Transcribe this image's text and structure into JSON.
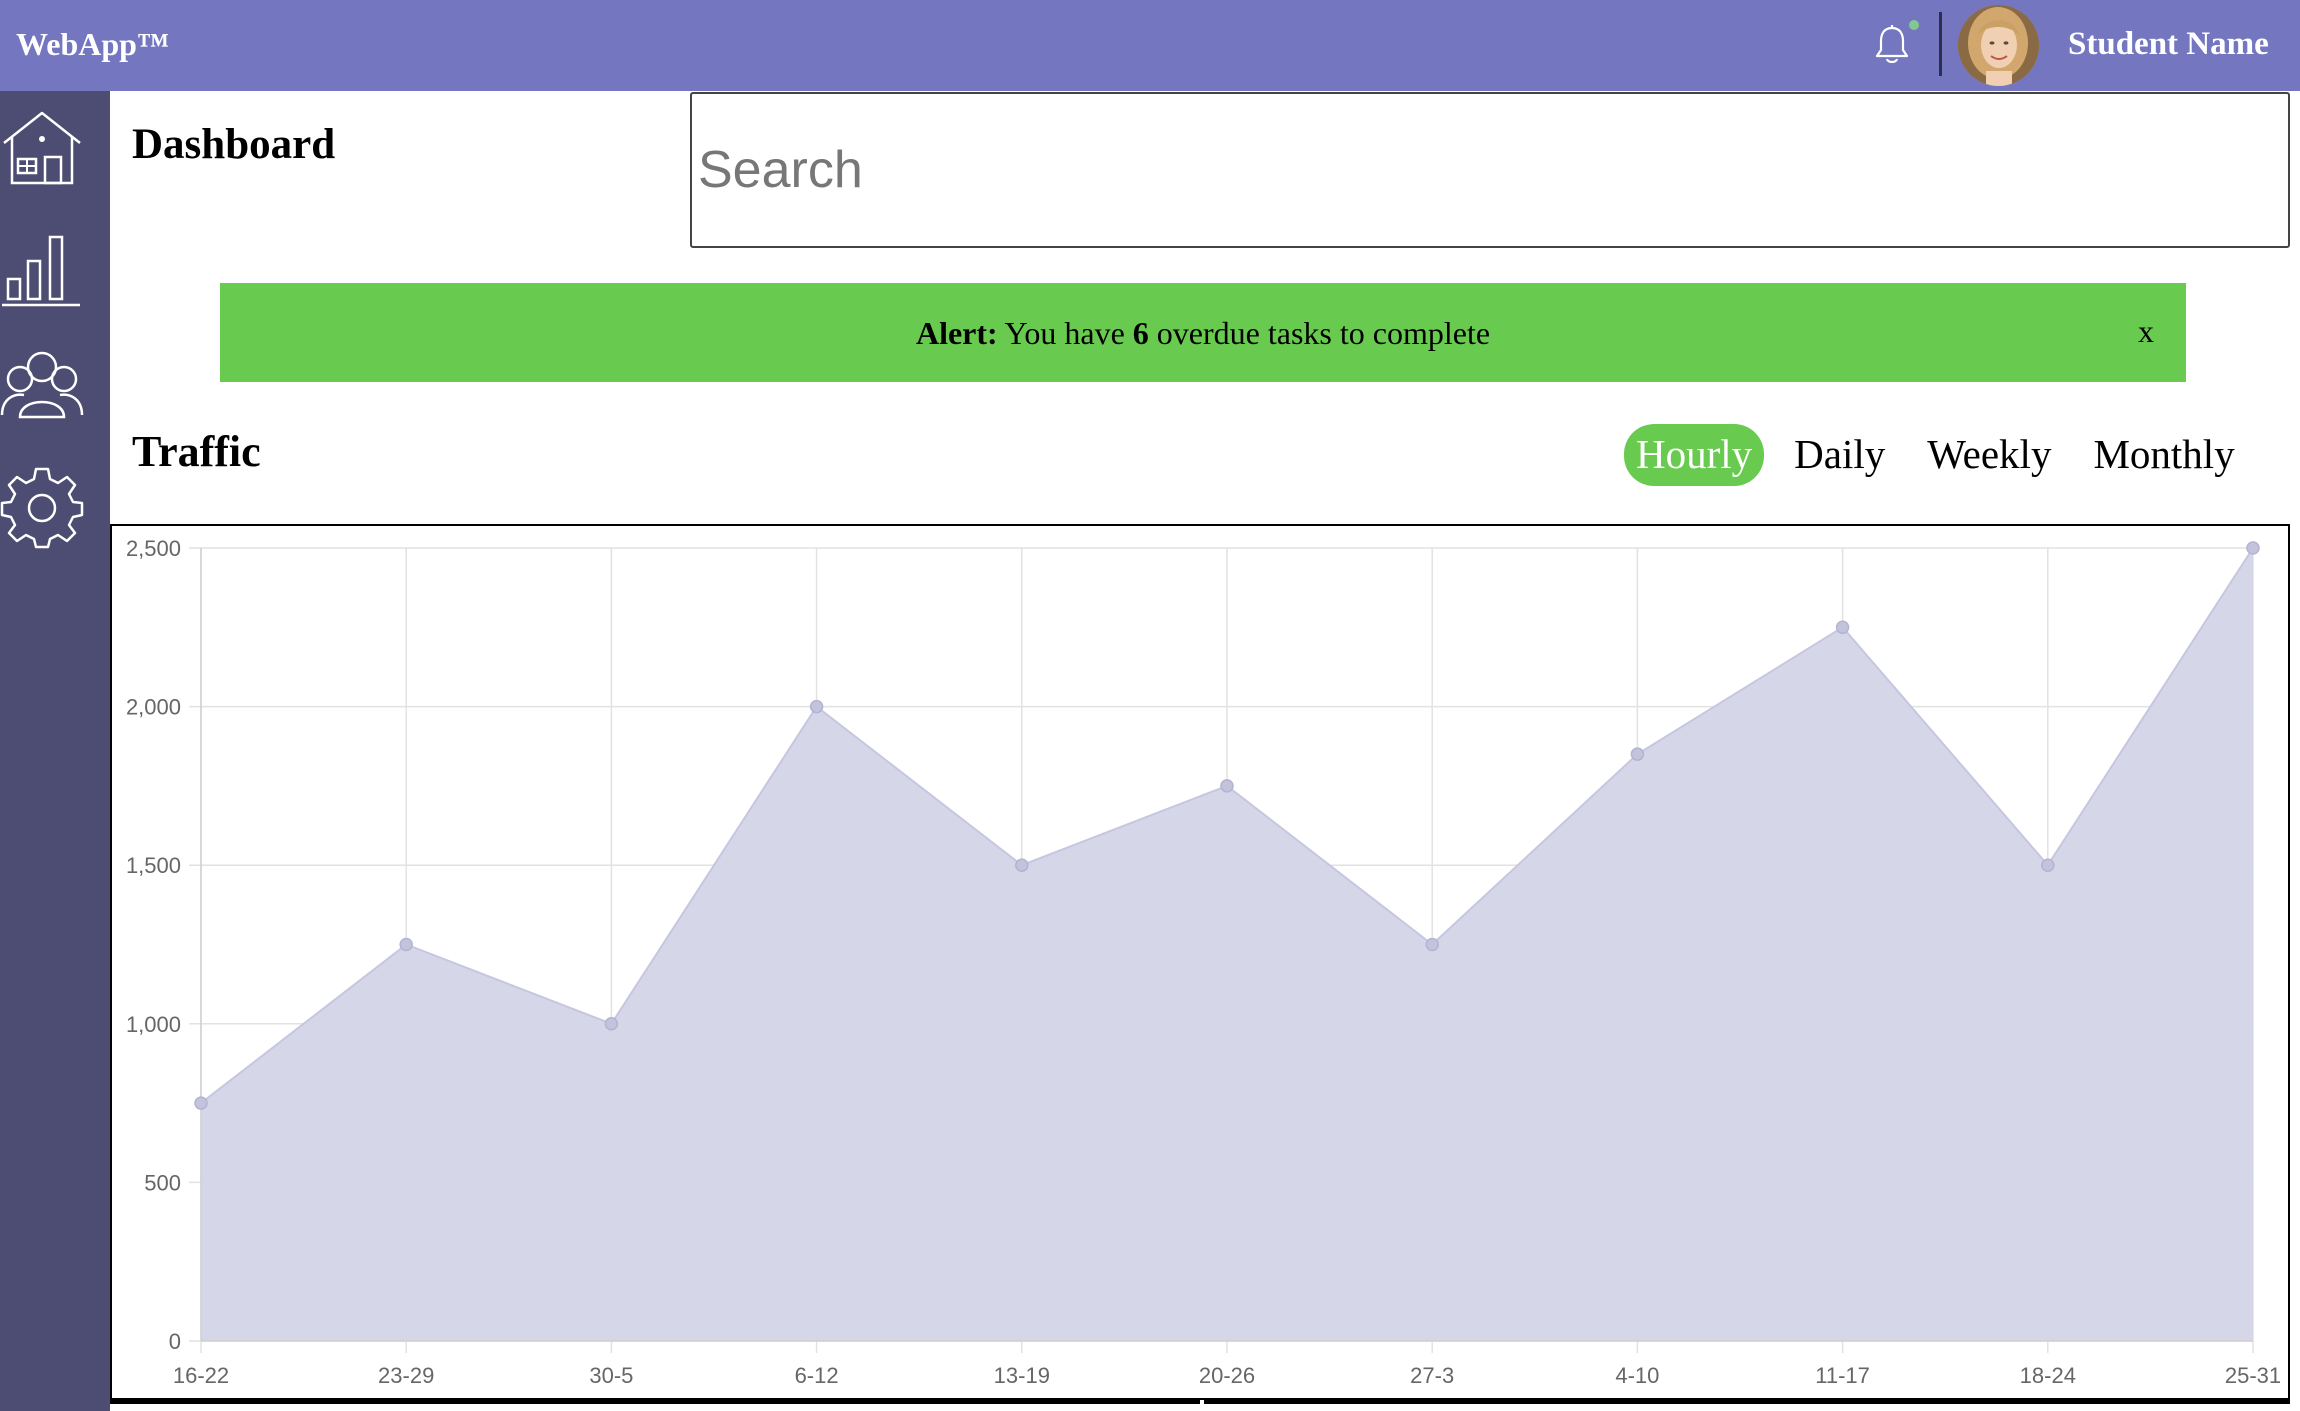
{
  "app": {
    "brand": "WebApp™",
    "user_name": "Student Name"
  },
  "header": {
    "notification_has_new": true
  },
  "sidebar": {
    "items": [
      {
        "icon": "home-icon"
      },
      {
        "icon": "bar-chart-icon"
      },
      {
        "icon": "users-icon"
      },
      {
        "icon": "gear-icon"
      }
    ]
  },
  "main": {
    "title": "Dashboard",
    "search_placeholder": "Search"
  },
  "alert": {
    "label": "Alert:",
    "text_before": " You have ",
    "count": "6",
    "text_after": " overdue tasks to complete",
    "close": "x"
  },
  "traffic": {
    "title": "Traffic",
    "tabs": [
      "Hourly",
      "Daily",
      "Weekly",
      "Monthly"
    ],
    "active_tab": "Hourly"
  },
  "colors": {
    "header": "#7477bf",
    "sidebar": "#4d4c72",
    "accent_green": "#68cb4f",
    "area_fill": "#d4d4e8",
    "area_line": "#c6c6e0"
  },
  "chart_data": {
    "type": "area",
    "categories": [
      "16-22",
      "23-29",
      "30-5",
      "6-12",
      "13-19",
      "20-26",
      "27-3",
      "4-10",
      "11-17",
      "18-24",
      "25-31"
    ],
    "series": [
      {
        "values": [
          750,
          1250,
          1000,
          2000,
          1500,
          1750,
          1250,
          1850,
          2250,
          1500,
          2500
        ]
      }
    ],
    "ylim": [
      0,
      2500
    ],
    "yticks": [
      0,
      500,
      1000,
      1500,
      2000,
      2500
    ],
    "ytick_labels": [
      "0",
      "500",
      "1,000",
      "1,500",
      "2,000",
      "2,500"
    ],
    "grid": true
  }
}
